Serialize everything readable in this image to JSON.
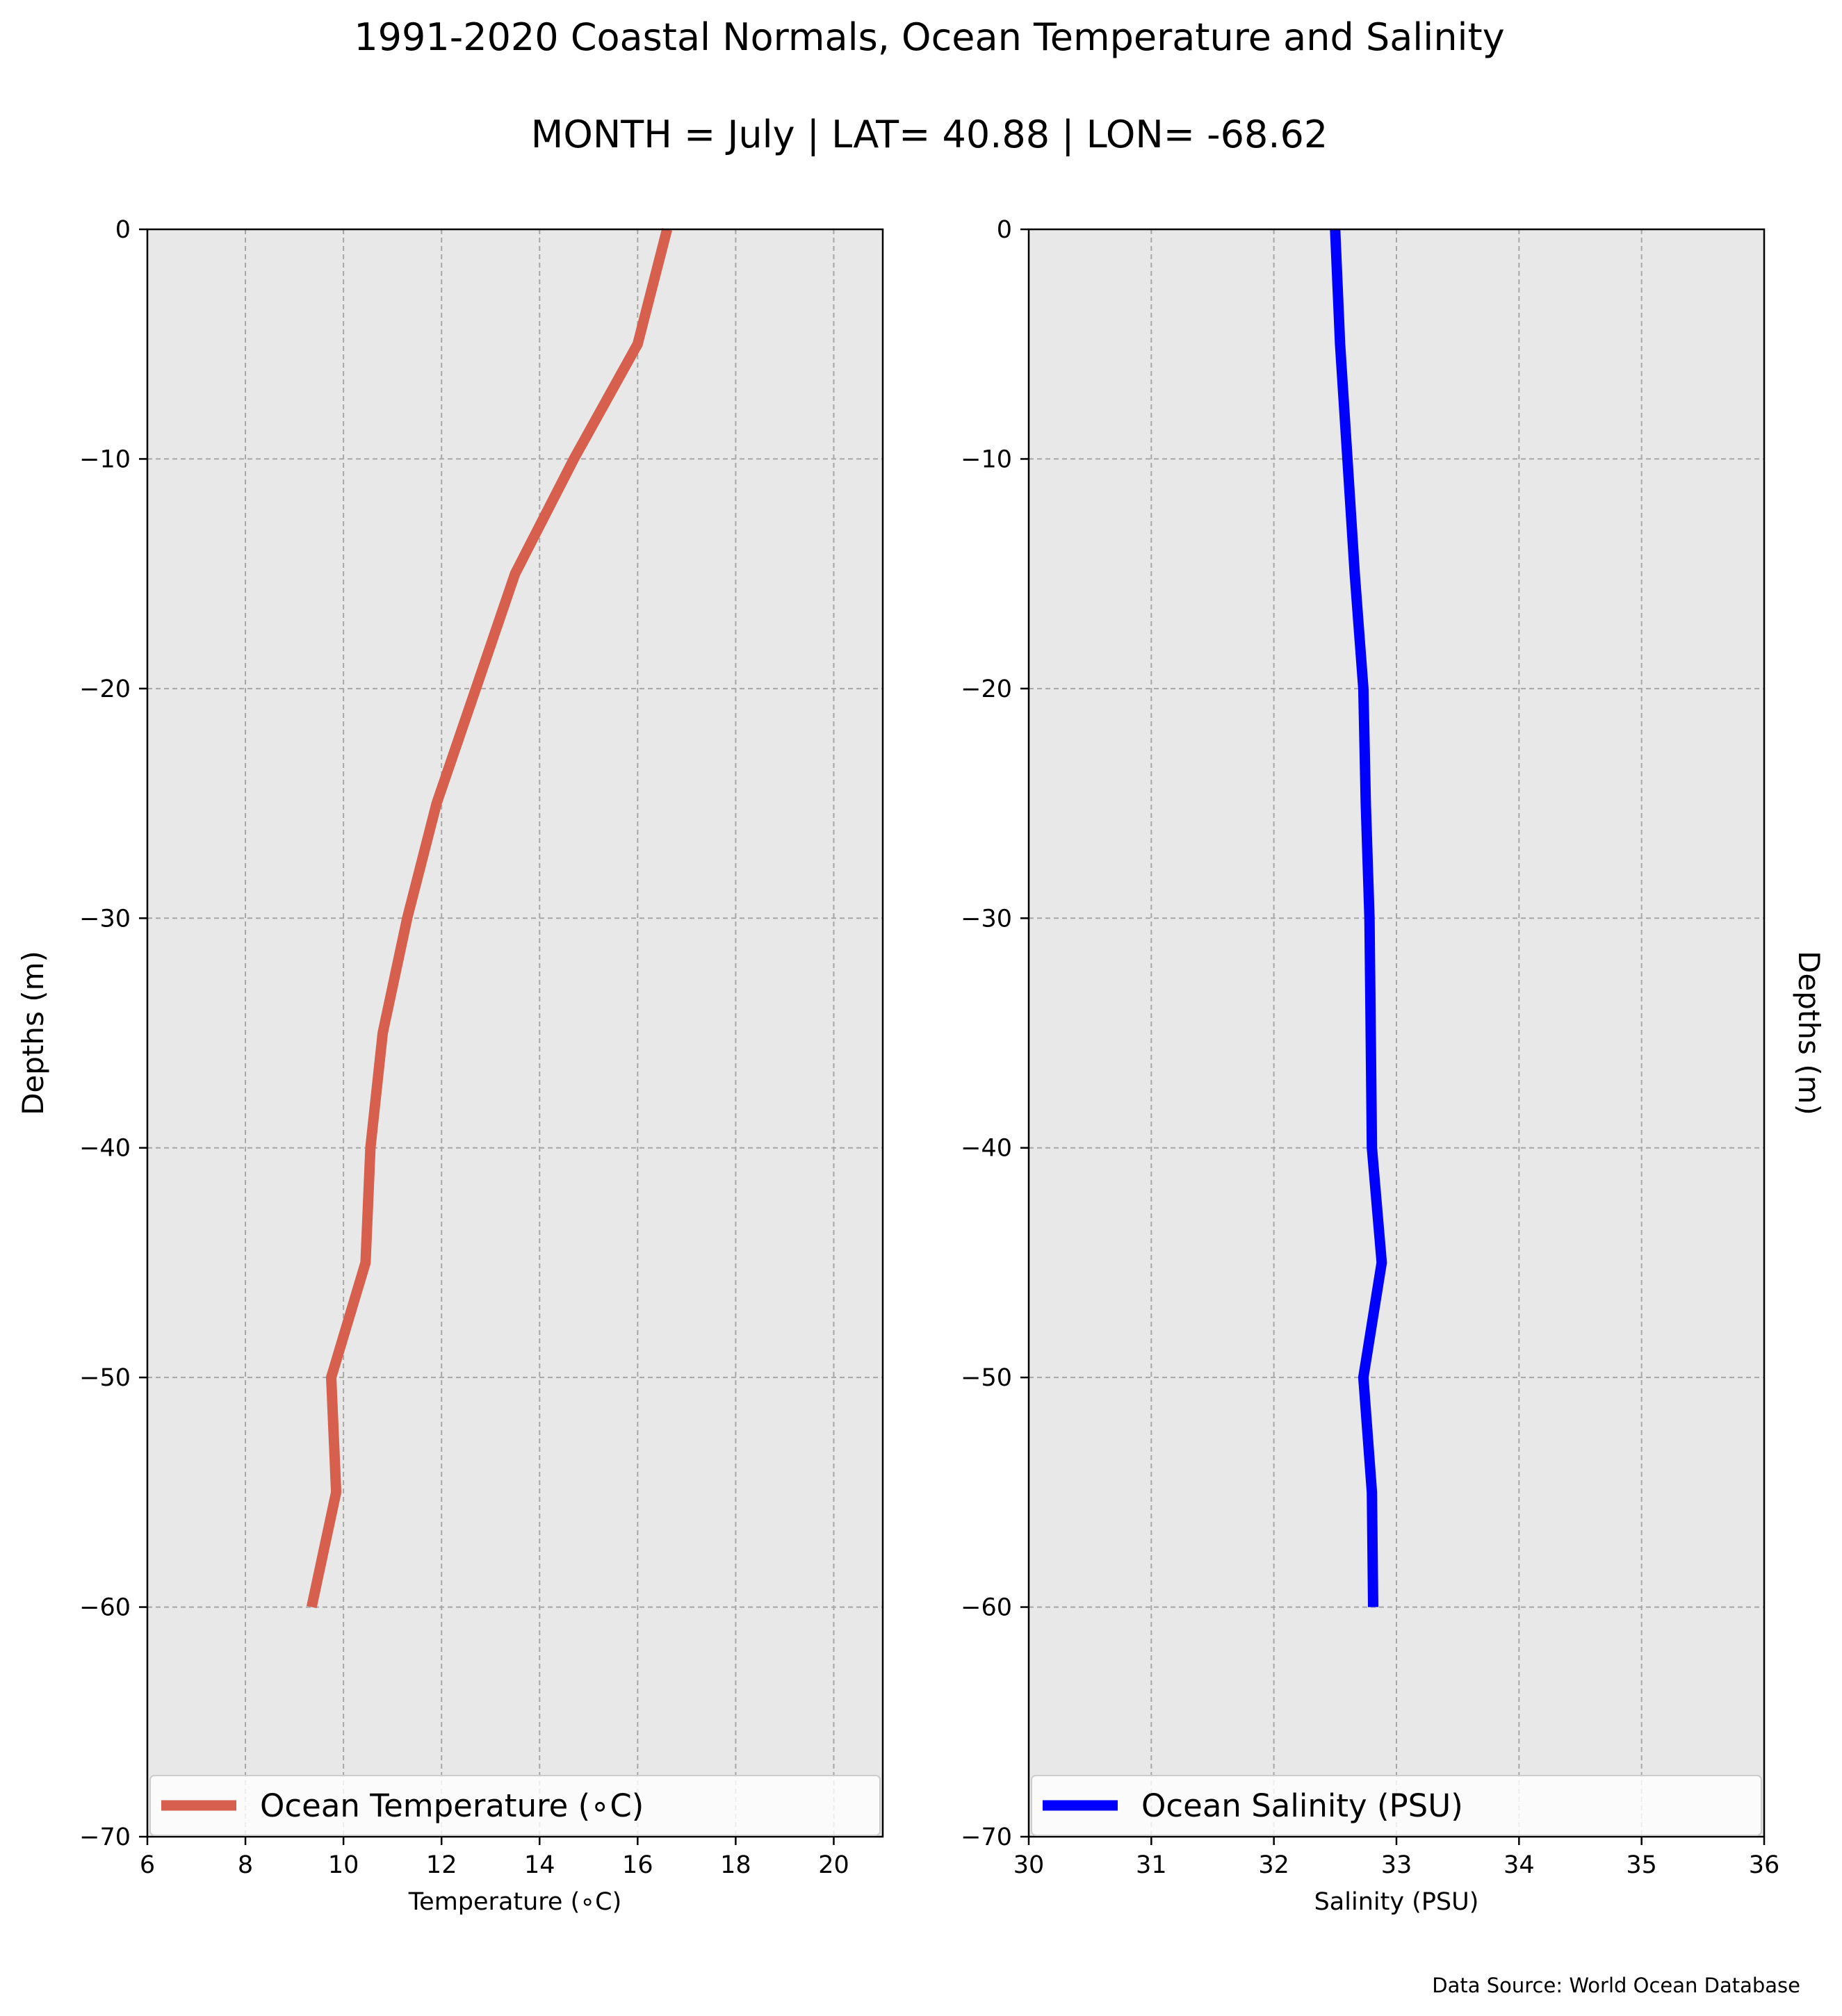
{
  "figure": {
    "title": "1991-2020 Coastal Normals, Ocean Temperature and Salinity",
    "subtitle": "MONTH = July | LAT= 40.88 | LON= -68.62",
    "footnote": "Data Source: World Ocean Database",
    "colors": {
      "background": "#ffffff",
      "plot_background": "#e8e8e8",
      "grid": "#a6a6a6"
    }
  },
  "chart_data": [
    {
      "type": "line",
      "xlabel": "Temperature (∘C)",
      "ylabel": "Depths (m)",
      "xlim": [
        6,
        21
      ],
      "ylim": [
        -70,
        0
      ],
      "xticks": [
        6,
        8,
        10,
        12,
        14,
        16,
        18,
        20
      ],
      "yticks": [
        0,
        -10,
        -20,
        -30,
        -40,
        -50,
        -60,
        -70
      ],
      "grid": true,
      "legend_position": "lower-center",
      "series": [
        {
          "name": "Ocean Temperature (∘C)",
          "color": "#d6604d",
          "x": [
            16.6,
            16.0,
            14.7,
            13.5,
            12.7,
            11.9,
            11.3,
            10.8,
            10.55,
            10.45,
            9.75,
            9.85,
            9.35
          ],
          "y": [
            0,
            -5,
            -10,
            -15,
            -20,
            -25,
            -30,
            -35,
            -40,
            -45,
            -50,
            -55,
            -60
          ]
        }
      ]
    },
    {
      "type": "line",
      "xlabel": "Salinity (PSU)",
      "ylabel": "Depths (m)",
      "xlim": [
        30,
        36
      ],
      "ylim": [
        -70,
        0
      ],
      "xticks": [
        30,
        31,
        32,
        33,
        34,
        35,
        36
      ],
      "yticks": [
        0,
        -10,
        -20,
        -30,
        -40,
        -50,
        -60,
        -70
      ],
      "grid": true,
      "legend_position": "lower-center",
      "series": [
        {
          "name": "Ocean Salinity (PSU)",
          "color": "#0000ff",
          "x": [
            32.5,
            32.54,
            32.6,
            32.66,
            32.73,
            32.75,
            32.78,
            32.79,
            32.8,
            32.88,
            32.73,
            32.8,
            32.81
          ],
          "y": [
            0,
            -5,
            -10,
            -15,
            -20,
            -25,
            -30,
            -35,
            -40,
            -45,
            -50,
            -55,
            -60
          ]
        }
      ]
    }
  ]
}
